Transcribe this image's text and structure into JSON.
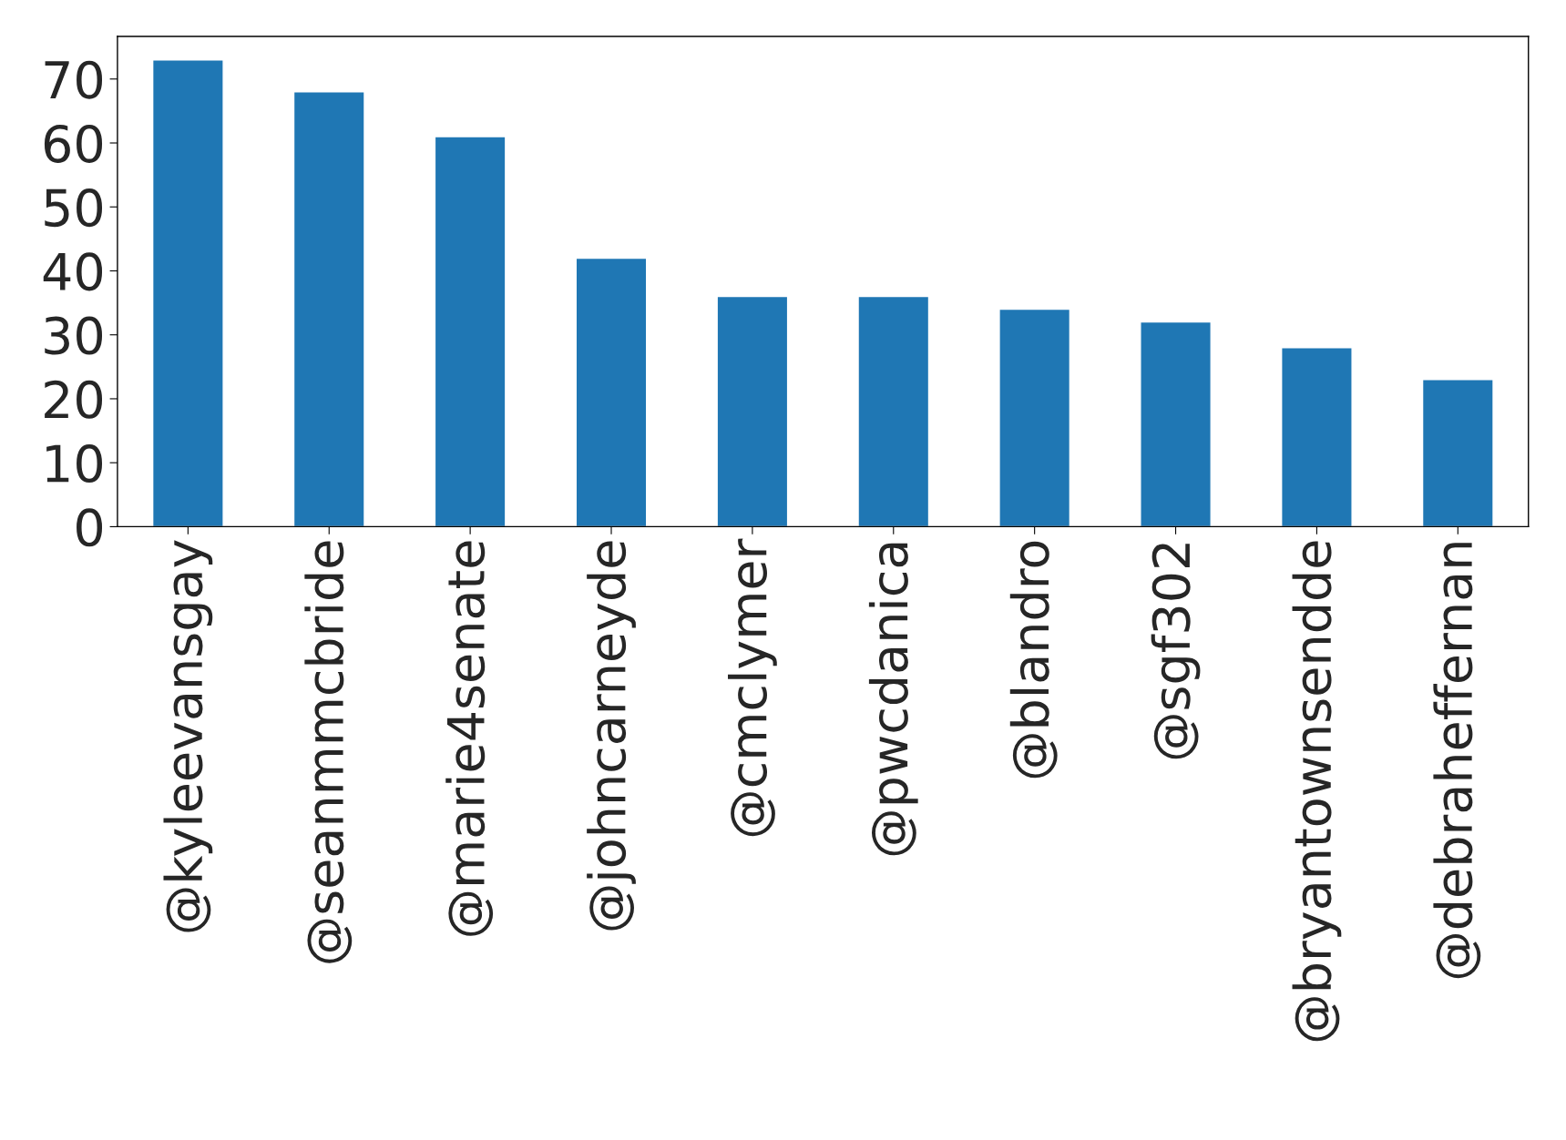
{
  "chart_data": {
    "type": "bar",
    "categories": [
      "@kyleevansgay",
      "@seanmmcbride",
      "@marie4senate",
      "@johncarneyde",
      "@cmclymer",
      "@pwcdanica",
      "@blandro",
      "@sgf302",
      "@bryantownsendde",
      "@debraheffernan"
    ],
    "values": [
      73,
      68,
      61,
      42,
      36,
      36,
      34,
      32,
      28,
      23
    ],
    "color": "#1f77b4",
    "ylim": [
      0,
      76.65
    ],
    "yticks": [
      0,
      10,
      20,
      30,
      40,
      50,
      60,
      70
    ],
    "grid": false
  }
}
